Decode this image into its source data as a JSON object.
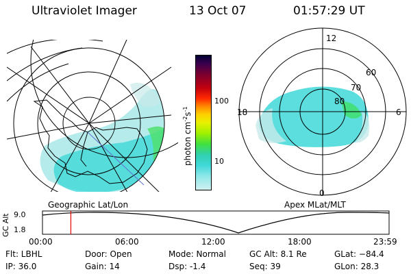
{
  "header": {
    "instrument": "Ultraviolet Imager",
    "date": "13 Oct 07",
    "time": "01:57:29 UT"
  },
  "colorbar": {
    "unit_label": "photon cm",
    "unit_sup1": "-2",
    "unit_s": "s",
    "unit_sup2": "-1",
    "ticks": [
      "100",
      "10"
    ],
    "colors": [
      "#000033",
      "#3a0050",
      "#7a0030",
      "#c00010",
      "#ff2a00",
      "#ff8a00",
      "#ffd000",
      "#e8f000",
      "#a0f000",
      "#40e040",
      "#30d0b0",
      "#40d8d8",
      "#90e8e8",
      "#d0f0f0"
    ]
  },
  "left_panel": {
    "caption": "Geographic Lat/Lon"
  },
  "right_panel": {
    "caption": "Apex MLat/MLT",
    "mlt_labels": [
      "12",
      "18",
      "6",
      "0"
    ],
    "mlat_labels": [
      "60",
      "70",
      "80"
    ]
  },
  "orbit_plot": {
    "ylabel": "GC Alt",
    "y_ticks": [
      "9.0",
      "1.8"
    ],
    "x_ticks": [
      "00:00",
      "06:00",
      "12:00",
      "18:00",
      "23:59"
    ],
    "current_time_fraction": 0.0819
  },
  "info": {
    "flt": "Flt: LBHL",
    "ip": "IP: 36.0",
    "door": "Door: Open",
    "gain": "Gain: 14",
    "mode": "Mode: Normal",
    "dsp": "Dsp:    -1.4",
    "gcalt": "GC Alt: 8.1 Re",
    "seq": "Seq: 39",
    "glat": "GLat: −84.4",
    "glon": "GLon:  28.3"
  }
}
